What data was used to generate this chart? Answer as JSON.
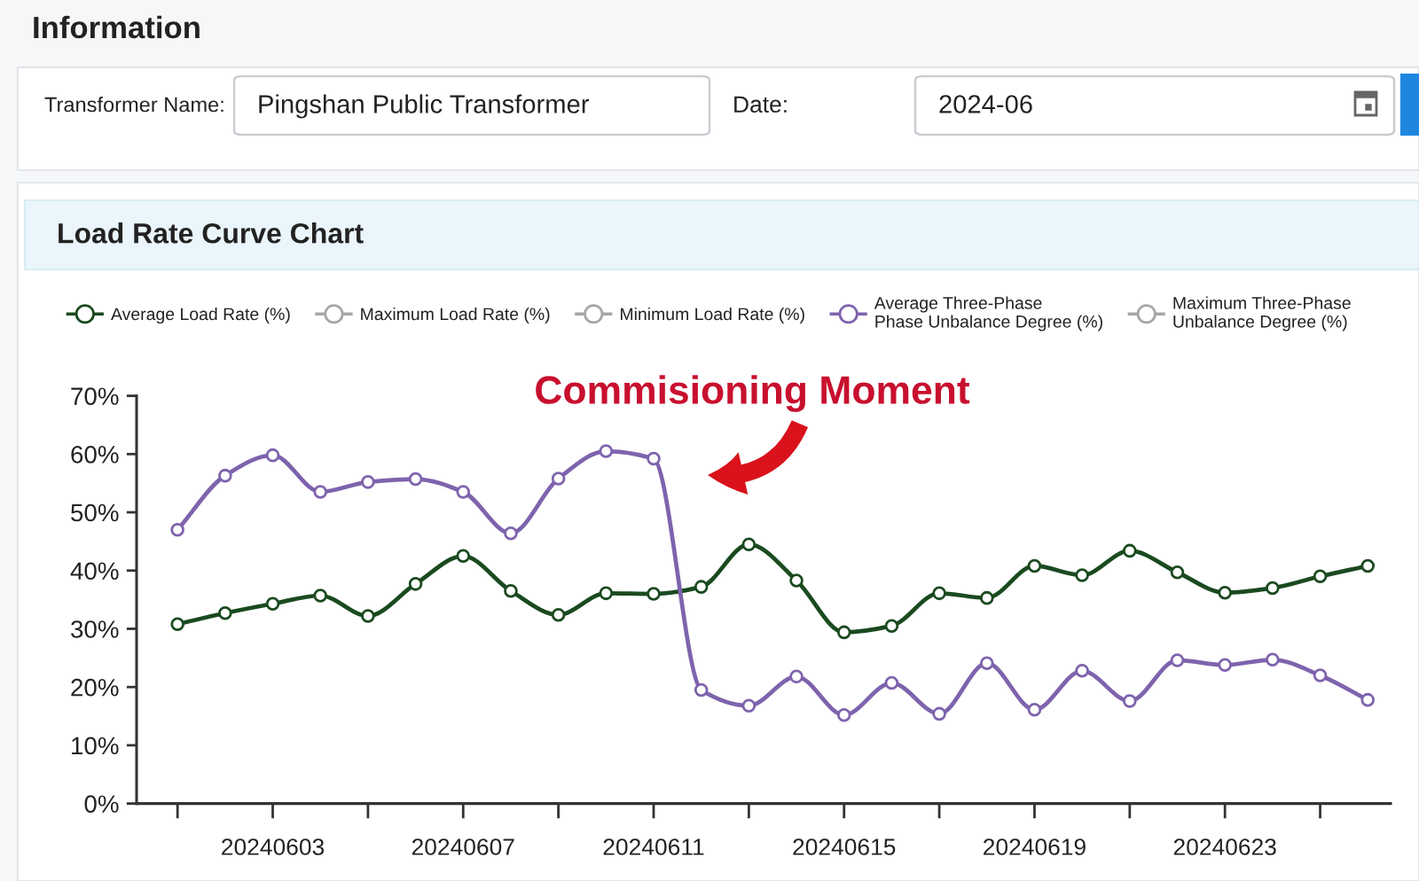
{
  "chart_data": {
    "type": "line",
    "title": "Load Rate Curve Chart",
    "annotations": [
      "Information",
      "Transformer Name:",
      "Pingshan Public Transformer",
      "Date:",
      "2024-06",
      "Commisioning Moment"
    ],
    "categories": [
      null,
      null,
      "20240603",
      null,
      null,
      null,
      "20240607",
      null,
      null,
      null,
      "20240611",
      null,
      null,
      null,
      "20240615",
      null,
      null,
      null,
      "20240619",
      null,
      null,
      null,
      "20240623",
      null,
      null,
      null
    ],
    "series": [
      {
        "name": "Average Load Rate (%)",
        "color": "#1a4a1f",
        "values": [
          30.8,
          32.7,
          34.3,
          35.7,
          32.2,
          37.7,
          42.5,
          36.5,
          32.4,
          36.1,
          36.0,
          37.2,
          44.5,
          38.3,
          29.4,
          30.5,
          36.1,
          35.3,
          40.8,
          39.2,
          43.4,
          39.7,
          36.2,
          37.0,
          39.0,
          40.8
        ]
      },
      {
        "name": "Maximum Load Rate (%)",
        "color": "#a6a6a6",
        "values": [
          null,
          null,
          null,
          null,
          null,
          null,
          null,
          null,
          null,
          null,
          null,
          null,
          null,
          null,
          null,
          null,
          null,
          null,
          null,
          null,
          null,
          null,
          null,
          null,
          null,
          null
        ]
      },
      {
        "name": "Minimum Load Rate (%)",
        "color": "#a6a6a6",
        "values": [
          null,
          null,
          null,
          null,
          null,
          null,
          null,
          null,
          null,
          null,
          null,
          null,
          null,
          null,
          null,
          null,
          null,
          null,
          null,
          null,
          null,
          null,
          null,
          null,
          null,
          null
        ]
      },
      {
        "name": "Average Three-Phase\nPhase Unbalance Degree (%)",
        "color": "#7e63ad",
        "values": [
          47.0,
          56.3,
          59.8,
          53.5,
          55.2,
          55.7,
          53.5,
          46.4,
          55.8,
          60.5,
          59.2,
          19.5,
          16.8,
          21.8,
          15.2,
          20.7,
          15.4,
          24.1,
          16.1,
          22.8,
          17.6,
          24.6,
          23.8,
          24.7,
          22.0,
          17.8
        ]
      },
      {
        "name": "Maximum Three-Phase\nUnbalance Degree (%)",
        "color": "#a6a6a6",
        "values": [
          null,
          null,
          null,
          null,
          null,
          null,
          null,
          null,
          null,
          null,
          null,
          null,
          null,
          null,
          null,
          null,
          null,
          null,
          null,
          null,
          null,
          null,
          null,
          null,
          null,
          null
        ]
      }
    ],
    "ylim": [
      0,
      70
    ],
    "yticks": [
      {
        "value": 0,
        "label": "0%"
      },
      {
        "value": 10,
        "label": "10%"
      },
      {
        "value": 20,
        "label": "20%"
      },
      {
        "value": 30,
        "label": "30%"
      },
      {
        "value": 40,
        "label": "40%"
      },
      {
        "value": 50,
        "label": "50%"
      },
      {
        "value": 60,
        "label": "60%"
      },
      {
        "value": 70,
        "label": "70%"
      }
    ],
    "legend": "top",
    "marker": "circle",
    "line_style": "solid"
  }
}
